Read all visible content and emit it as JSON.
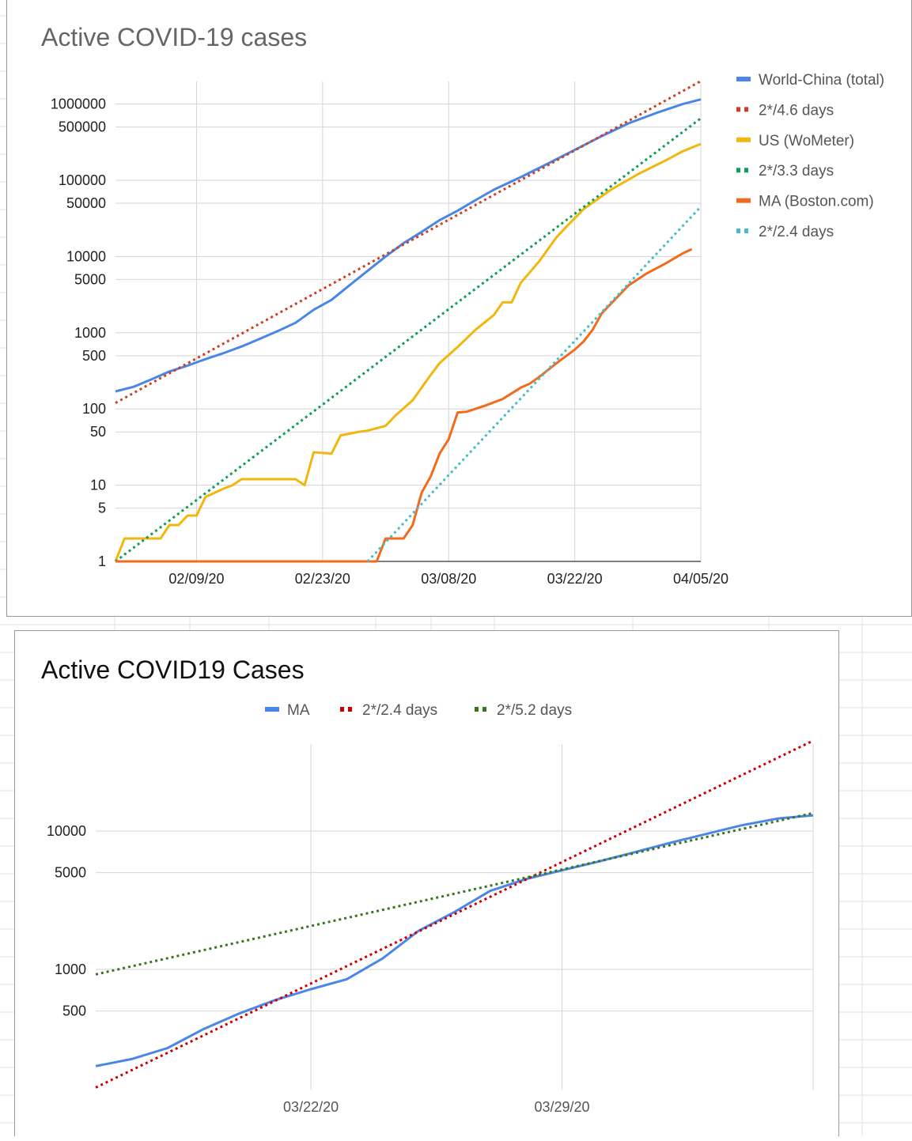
{
  "chart_data": [
    {
      "type": "line",
      "title": "Active COVID-19 cases",
      "scale": "log",
      "x_tick_labels": [
        "02/09/20",
        "02/23/20",
        "03/08/20",
        "03/22/20",
        "04/05/20"
      ],
      "y_tick_labels": [
        "1",
        "5",
        "10",
        "50",
        "100",
        "500",
        "1000",
        "5000",
        "10000",
        "50000",
        "100000",
        "500000",
        "1000000"
      ],
      "y_ticks": [
        1,
        5,
        10,
        50,
        100,
        500,
        1000,
        5000,
        10000,
        50000,
        100000,
        500000,
        1000000
      ],
      "xlim": [
        "01/31/20",
        "04/05/20"
      ],
      "ylim": [
        1,
        1000000
      ],
      "legend_position": "right",
      "series": [
        {
          "name": "World-China (total)",
          "style": "solid",
          "color": "#4a86e8",
          "points": [
            [
              "01/31/20",
              170
            ],
            [
              "02/02/20",
              195
            ],
            [
              "02/04/20",
              245
            ],
            [
              "02/06/20",
              310
            ],
            [
              "02/08/20",
              370
            ],
            [
              "02/10/20",
              450
            ],
            [
              "02/12/20",
              540
            ],
            [
              "02/14/20",
              660
            ],
            [
              "02/16/20",
              830
            ],
            [
              "02/18/20",
              1050
            ],
            [
              "02/20/20",
              1350
            ],
            [
              "02/22/20",
              2000
            ],
            [
              "02/24/20",
              2700
            ],
            [
              "02/26/20",
              4200
            ],
            [
              "02/28/20",
              6500
            ],
            [
              "03/01/20",
              10000
            ],
            [
              "03/03/20",
              15000
            ],
            [
              "03/05/20",
              21000
            ],
            [
              "03/07/20",
              30000
            ],
            [
              "03/09/20",
              40000
            ],
            [
              "03/11/20",
              55000
            ],
            [
              "03/13/20",
              75000
            ],
            [
              "03/16/20",
              110000
            ],
            [
              "03/19/20",
              165000
            ],
            [
              "03/22/20",
              250000
            ],
            [
              "03/25/20",
              380000
            ],
            [
              "03/28/20",
              560000
            ],
            [
              "03/31/20",
              760000
            ],
            [
              "04/03/20",
              1000000
            ],
            [
              "04/05/20",
              1150000
            ]
          ]
        },
        {
          "name": "2*/4.6 days",
          "style": "dotted",
          "color": "#cc4125",
          "points": [
            [
              "01/31/20",
              120
            ],
            [
              "04/05/20",
              2000000
            ]
          ]
        },
        {
          "name": "US (WoMeter)",
          "style": "solid",
          "color": "#f1b70d",
          "points": [
            [
              "01/31/20",
              1
            ],
            [
              "02/01/20",
              2
            ],
            [
              "02/03/20",
              2
            ],
            [
              "02/05/20",
              2
            ],
            [
              "02/06/20",
              3
            ],
            [
              "02/07/20",
              3
            ],
            [
              "02/08/20",
              4
            ],
            [
              "02/09/20",
              4
            ],
            [
              "02/10/20",
              7
            ],
            [
              "02/12/20",
              9
            ],
            [
              "02/13/20",
              10
            ],
            [
              "02/14/20",
              12
            ],
            [
              "02/16/20",
              12
            ],
            [
              "02/18/20",
              12
            ],
            [
              "02/20/20",
              12
            ],
            [
              "02/21/20",
              10
            ],
            [
              "02/22/20",
              27
            ],
            [
              "02/24/20",
              26
            ],
            [
              "02/25/20",
              45
            ],
            [
              "02/27/20",
              50
            ],
            [
              "02/28/20",
              52
            ],
            [
              "03/01/20",
              60
            ],
            [
              "03/02/20",
              80
            ],
            [
              "03/04/20",
              130
            ],
            [
              "03/06/20",
              280
            ],
            [
              "03/07/20",
              400
            ],
            [
              "03/09/20",
              650
            ],
            [
              "03/11/20",
              1100
            ],
            [
              "03/13/20",
              1700
            ],
            [
              "03/14/20",
              2500
            ],
            [
              "03/15/20",
              2500
            ],
            [
              "03/16/20",
              4500
            ],
            [
              "03/18/20",
              8500
            ],
            [
              "03/20/20",
              18000
            ],
            [
              "03/21/20",
              24000
            ],
            [
              "03/23/20",
              42000
            ],
            [
              "03/26/20",
              75000
            ],
            [
              "03/29/20",
              120000
            ],
            [
              "04/01/20",
              180000
            ],
            [
              "04/03/20",
              240000
            ],
            [
              "04/05/20",
              300000
            ]
          ]
        },
        {
          "name": "2*/3.3 days",
          "style": "dotted",
          "color": "#0f9d58",
          "points": [
            [
              "01/31/20",
              1
            ],
            [
              "04/05/20",
              650000
            ]
          ]
        },
        {
          "name": "MA (Boston.com)",
          "style": "solid",
          "color": "#f26b1d",
          "points": [
            [
              "01/31/20",
              1
            ],
            [
              "02/29/20",
              1
            ],
            [
              "03/01/20",
              2
            ],
            [
              "03/03/20",
              2
            ],
            [
              "03/04/20",
              3
            ],
            [
              "03/05/20",
              8
            ],
            [
              "03/06/20",
              13
            ],
            [
              "03/07/20",
              26
            ],
            [
              "03/08/20",
              40
            ],
            [
              "03/09/20",
              90
            ],
            [
              "03/10/20",
              92
            ],
            [
              "03/12/20",
              110
            ],
            [
              "03/14/20",
              135
            ],
            [
              "03/16/20",
              190
            ],
            [
              "03/17/20",
              215
            ],
            [
              "03/18/20",
              260
            ],
            [
              "03/20/20",
              400
            ],
            [
              "03/22/20",
              600
            ],
            [
              "03/23/20",
              770
            ],
            [
              "03/24/20",
              1100
            ],
            [
              "03/25/20",
              1800
            ],
            [
              "03/28/20",
              4200
            ],
            [
              "03/30/20",
              6000
            ],
            [
              "04/01/20",
              8000
            ],
            [
              "04/03/20",
              11000
            ],
            [
              "04/04/20",
              12500
            ]
          ]
        },
        {
          "name": "2*/2.4 days",
          "style": "dotted",
          "color": "#46bdc6",
          "points": [
            [
              "02/28/20",
              1
            ],
            [
              "04/05/20",
              45000
            ]
          ]
        }
      ]
    },
    {
      "type": "line",
      "title": "Active COVID19 Cases",
      "scale": "log",
      "x_tick_labels": [
        "03/22/20",
        "03/29/20"
      ],
      "y_tick_labels": [
        "500",
        "1000",
        "5000",
        "10000"
      ],
      "y_ticks": [
        500,
        1000,
        5000,
        10000
      ],
      "xlim": [
        "03/16/20",
        "04/05/20"
      ],
      "legend_position": "top",
      "series": [
        {
          "name": "MA",
          "style": "solid",
          "color": "#4a86e8",
          "points": [
            [
              "03/16/20",
              200
            ],
            [
              "03/17/20",
              225
            ],
            [
              "03/18/20",
              270
            ],
            [
              "03/19/20",
              370
            ],
            [
              "03/20/20",
              480
            ],
            [
              "03/21/20",
              600
            ],
            [
              "03/22/20",
              720
            ],
            [
              "03/23/20",
              850
            ],
            [
              "03/24/20",
              1200
            ],
            [
              "03/25/20",
              1900
            ],
            [
              "03/26/20",
              2600
            ],
            [
              "03/27/20",
              3700
            ],
            [
              "03/28/20",
              4500
            ],
            [
              "03/29/20",
              5200
            ],
            [
              "03/30/20",
              6000
            ],
            [
              "03/31/20",
              7000
            ],
            [
              "04/01/20",
              8200
            ],
            [
              "04/02/20",
              9500
            ],
            [
              "04/03/20",
              11000
            ],
            [
              "04/04/20",
              12300
            ],
            [
              "04/05/20",
              13000
            ]
          ]
        },
        {
          "name": "2*/2.4 days",
          "style": "dotted",
          "color": "#cc0000",
          "points": [
            [
              "03/16/20",
              140
            ],
            [
              "04/05/20",
              45000
            ]
          ]
        },
        {
          "name": "2*/5.2 days",
          "style": "dotted",
          "color": "#38761d",
          "points": [
            [
              "03/16/20",
              920
            ],
            [
              "04/05/20",
              13500
            ]
          ]
        }
      ]
    }
  ]
}
